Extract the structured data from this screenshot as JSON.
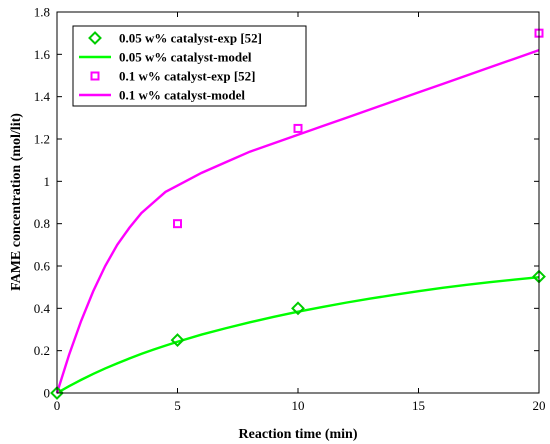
{
  "chart_data": {
    "type": "line",
    "title": "",
    "xlabel": "Reaction time (min)",
    "ylabel": "FAME concentration (mol/lit)",
    "xlim": [
      0,
      20
    ],
    "ylim": [
      0,
      1.8
    ],
    "xticks": [
      0,
      5,
      10,
      15,
      20
    ],
    "xtick_labels": [
      "0",
      "5",
      "10",
      "15",
      "20"
    ],
    "yticks": [
      0,
      0.2,
      0.4,
      0.6,
      0.8,
      1,
      1.2,
      1.4,
      1.6,
      1.8
    ],
    "ytick_labels": [
      "0",
      "0.2",
      "0.4",
      "0.6",
      "0.8",
      "1",
      "1.2",
      "1.4",
      "1.6",
      "1.8"
    ],
    "grid": false,
    "legend_position": "top-left",
    "series": [
      {
        "name": "0.05 w% catalyst-exp [52]",
        "kind": "scatter",
        "marker": "diamond",
        "color": "#00cc00",
        "x": [
          0,
          5,
          10,
          20
        ],
        "y": [
          0,
          0.25,
          0.4,
          0.55
        ]
      },
      {
        "name": "0.05 w% catalyst-model",
        "kind": "line",
        "color": "#00ff00",
        "x": [
          0,
          0.5,
          1,
          1.5,
          2,
          2.5,
          3,
          3.5,
          4,
          4.5,
          5,
          6,
          7,
          8,
          9,
          10,
          11,
          12,
          13,
          14,
          15,
          16,
          17,
          18,
          19,
          20
        ],
        "y": [
          0,
          0.032,
          0.062,
          0.09,
          0.116,
          0.14,
          0.163,
          0.185,
          0.205,
          0.224,
          0.242,
          0.276,
          0.306,
          0.334,
          0.36,
          0.384,
          0.406,
          0.427,
          0.446,
          0.464,
          0.481,
          0.497,
          0.511,
          0.524,
          0.536,
          0.547
        ]
      },
      {
        "name": "0.1 w% catalyst-exp [52]",
        "kind": "scatter",
        "marker": "square",
        "color": "#ff00ff",
        "x": [
          5,
          10,
          20
        ],
        "y": [
          0.8,
          1.25,
          1.7
        ]
      },
      {
        "name": "0.1 w% catalyst-model",
        "kind": "line",
        "color": "#ff00ff",
        "x": [
          0,
          0.5,
          1,
          1.5,
          2,
          2.5,
          3,
          3.5,
          4,
          4.5,
          5,
          6,
          7,
          8,
          9,
          10,
          11,
          12,
          13,
          14,
          15,
          16,
          17,
          18,
          19,
          20
        ],
        "y": [
          0,
          0.18,
          0.34,
          0.48,
          0.6,
          0.7,
          0.78,
          0.85,
          0.9,
          0.95,
          0.98,
          1.04,
          1.09,
          1.14,
          1.18,
          1.22,
          1.26,
          1.3,
          1.34,
          1.38,
          1.42,
          1.46,
          1.5,
          1.54,
          1.58,
          1.62
        ]
      }
    ]
  }
}
